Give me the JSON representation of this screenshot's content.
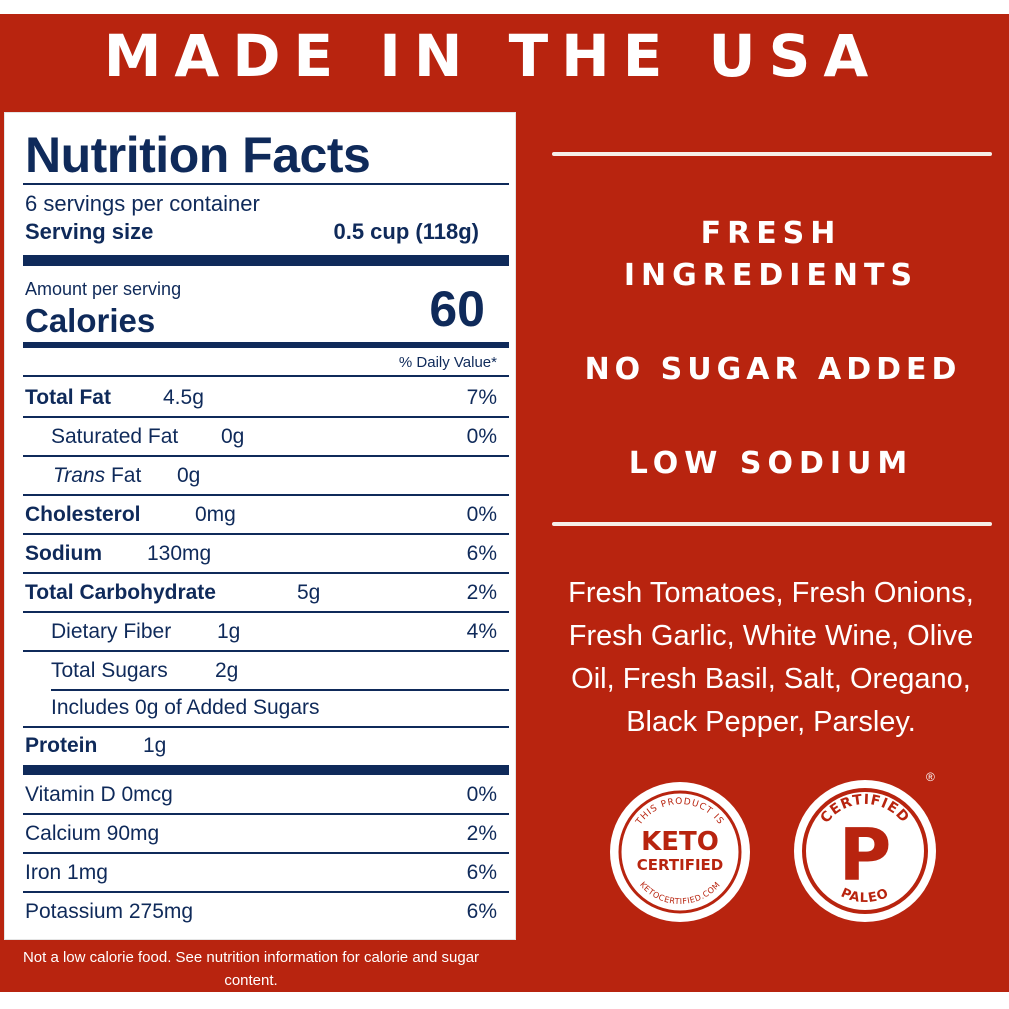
{
  "headline": "MADE IN THE USA",
  "nutrition": {
    "title": "Nutrition Facts",
    "servings_per_container": "6 servings per container",
    "serving_size_label": "Serving size",
    "serving_size_value": "0.5 cup (118g)",
    "amount_per_serving": "Amount per serving",
    "calories_label": "Calories",
    "calories_value": "60",
    "daily_value_header": "% Daily Value*",
    "rows": [
      {
        "label": "Total Fat",
        "amount": "4.5g",
        "dv": "7%"
      },
      {
        "label": "Saturated Fat",
        "amount": "0g",
        "dv": "0%"
      },
      {
        "label_italic": "Trans",
        "label": " Fat",
        "amount": "0g",
        "dv": ""
      },
      {
        "label": "Cholesterol",
        "amount": "0mg",
        "dv": "0%"
      },
      {
        "label": "Sodium",
        "amount": "130mg",
        "dv": "6%"
      },
      {
        "label": "Total Carbohydrate",
        "amount": "5g",
        "dv": "2%"
      },
      {
        "label": "Dietary Fiber",
        "amount": "1g",
        "dv": "4%"
      },
      {
        "label": "Total Sugars",
        "amount": "2g",
        "dv": ""
      },
      {
        "label": "Includes 0g of Added Sugars",
        "amount": "",
        "dv": ""
      },
      {
        "label": "Protein",
        "amount": "1g",
        "dv": ""
      }
    ],
    "vitamins": [
      {
        "label": "Vitamin D 0mcg",
        "dv": "0%"
      },
      {
        "label": "Calcium 90mg",
        "dv": "2%"
      },
      {
        "label": "Iron 1mg",
        "dv": "6%"
      },
      {
        "label": "Potassium 275mg",
        "dv": "6%"
      }
    ]
  },
  "footnote": "Not a low calorie food. See nutrition information for calorie and sugar content.",
  "claims": {
    "fresh_line1": "FRESH",
    "fresh_line2": "INGREDIENTS",
    "no_sugar": "NO SUGAR ADDED",
    "low_sodium": "LOW SODIUM"
  },
  "ingredients": "Fresh Tomatoes, Fresh Onions, Fresh Garlic, White Wine, Olive Oil, Fresh Basil, Salt, Oregano, Black Pepper, Parsley.",
  "badges": {
    "keto": {
      "top_text": "THIS PRODUCT IS",
      "line1": "KETO",
      "line2": "CERTIFIED",
      "bottom_text": "KETOCERTIFIED.COM"
    },
    "paleo": {
      "top_text": "CERTIFIED",
      "letter": "P",
      "bottom_text": "PALEO",
      "registered": "®"
    }
  },
  "colors": {
    "background_red": "#b8240f",
    "label_navy": "#0f2a5a",
    "white": "#ffffff"
  }
}
